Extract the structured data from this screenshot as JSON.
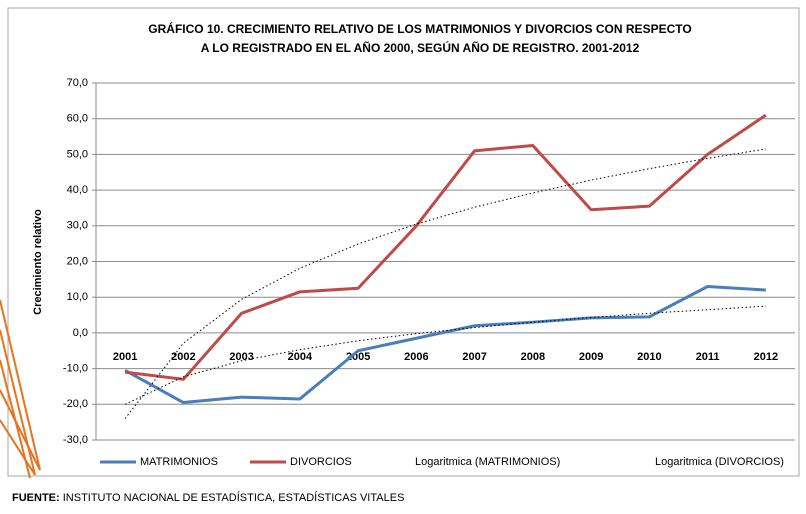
{
  "chart_data": {
    "type": "line",
    "title": [
      "GRÁFICO 10. CRECIMIENTO RELATIVO DE LOS MATRIMONIOS Y DIVORCIOS CON RESPECTO",
      "A LO REGISTRADO EN EL AÑO 2000, SEGÚN AÑO DE REGISTRO. 2001-2012"
    ],
    "ylabel": "Crecimiento relativo",
    "categories": [
      "2001",
      "2002",
      "2003",
      "2004",
      "2005",
      "2006",
      "2007",
      "2008",
      "2009",
      "2010",
      "2011",
      "2012"
    ],
    "series": [
      {
        "name": "MATRIMONIOS",
        "color": "#4a7ebb",
        "style": "solid",
        "values": [
          -10.5,
          -19.5,
          -18,
          -18.5,
          -5,
          -1.5,
          2,
          3,
          4.2,
          4.5,
          13,
          12
        ]
      },
      {
        "name": "DIVORCIOS",
        "color": "#be4b48",
        "style": "solid",
        "values": [
          -11,
          -13,
          5.5,
          11.5,
          12.5,
          30,
          51,
          52.5,
          34.5,
          35.5,
          50,
          61
        ]
      },
      {
        "name": "Logaritmica (MATRIMONIOS)",
        "color": "#000000",
        "style": "dotted",
        "values": [
          -20,
          -12.3,
          -7.8,
          -4.7,
          -2.2,
          -0.2,
          1.5,
          3.0,
          4.3,
          5.5,
          6.5,
          7.5
        ]
      },
      {
        "name": "Logaritmica (DIVORCIOS)",
        "color": "#000000",
        "style": "dotted",
        "values": [
          -24,
          -2.9,
          9.4,
          18.1,
          24.9,
          30.5,
          35.2,
          39.2,
          42.8,
          46.0,
          48.9,
          51.5
        ]
      }
    ],
    "ylim": [
      -30,
      70
    ],
    "yticks": [
      {
        "value": -30,
        "label": "-30,0"
      },
      {
        "value": -20,
        "label": "-20,0"
      },
      {
        "value": -10,
        "label": "-10,0"
      },
      {
        "value": 0,
        "label": "0,0"
      },
      {
        "value": 10,
        "label": "10,0"
      },
      {
        "value": 20,
        "label": "20,0"
      },
      {
        "value": 30,
        "label": "30,0"
      },
      {
        "value": 40,
        "label": "40,0"
      },
      {
        "value": 50,
        "label": "50,0"
      },
      {
        "value": 60,
        "label": "60,0"
      },
      {
        "value": 70,
        "label": "70,0"
      }
    ],
    "grid": true,
    "legend": "bottom",
    "source_label": "FUENTE:",
    "source_text": " INSTITUTO NACIONAL DE ESTADÍSTICA, ESTADÍSTICAS VITALES"
  }
}
